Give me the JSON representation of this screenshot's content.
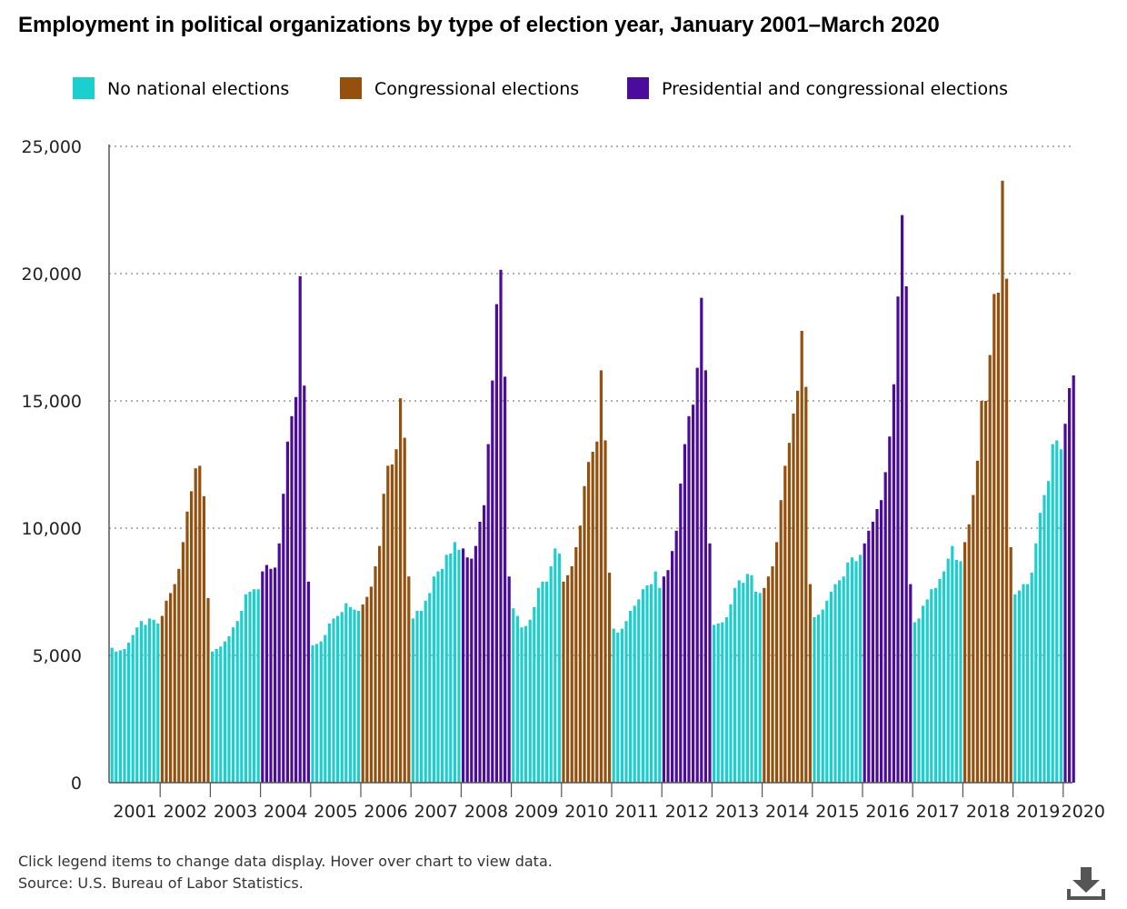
{
  "chart_data": {
    "type": "bar",
    "title": "Employment in political organizations by type of election year, January 2001–March 2020",
    "xlabel": "",
    "ylabel": "",
    "ylim": [
      0,
      25000
    ],
    "yticks": [
      "0",
      "5,000",
      "10,000",
      "15,000",
      "20,000",
      "25,000"
    ],
    "ytick_values": [
      0,
      5000,
      10000,
      15000,
      20000,
      25000
    ],
    "grid": true,
    "legend_position": "top",
    "legend": [
      {
        "key": "none",
        "label": "No national elections",
        "color": "#1ccfcf"
      },
      {
        "key": "congressional",
        "label": "Congressional elections",
        "color": "#96500e"
      },
      {
        "key": "presidential",
        "label": "Presidential and congressional elections",
        "color": "#4b0c9c"
      }
    ],
    "years": [
      {
        "label": "2001",
        "type": "none",
        "values": [
          5300,
          5150,
          5200,
          5250,
          5500,
          5800,
          6100,
          6350,
          6200,
          6450,
          6400,
          6250
        ]
      },
      {
        "label": "2002",
        "type": "congressional",
        "values": [
          6550,
          7150,
          7450,
          7800,
          8400,
          9450,
          10650,
          11450,
          12350,
          12450,
          11250,
          7250
        ]
      },
      {
        "label": "2003",
        "type": "none",
        "values": [
          5150,
          5250,
          5350,
          5550,
          5750,
          6100,
          6350,
          6750,
          7400,
          7500,
          7600,
          7600
        ]
      },
      {
        "label": "2004",
        "type": "presidential",
        "values": [
          8300,
          8550,
          8400,
          8450,
          9400,
          11350,
          13400,
          14400,
          15150,
          19900,
          15600,
          7900
        ]
      },
      {
        "label": "2005",
        "type": "none",
        "values": [
          5400,
          5450,
          5550,
          5800,
          6250,
          6450,
          6550,
          6700,
          7050,
          6900,
          6800,
          6750
        ]
      },
      {
        "label": "2006",
        "type": "congressional",
        "values": [
          7000,
          7300,
          7700,
          8500,
          9300,
          11350,
          12450,
          12500,
          13100,
          15100,
          13550,
          8100
        ]
      },
      {
        "label": "2007",
        "type": "none",
        "values": [
          6450,
          6750,
          6750,
          7150,
          7450,
          8100,
          8300,
          8400,
          8950,
          9000,
          9450,
          9150
        ]
      },
      {
        "label": "2008",
        "type": "presidential",
        "values": [
          9200,
          8850,
          8800,
          9300,
          10250,
          10900,
          13300,
          15800,
          18800,
          20150,
          15950,
          8100
        ]
      },
      {
        "label": "2009",
        "type": "none",
        "values": [
          6850,
          6550,
          6100,
          6150,
          6400,
          6900,
          7650,
          7900,
          7900,
          8500,
          9200,
          9000
        ]
      },
      {
        "label": "2010",
        "type": "congressional",
        "values": [
          7900,
          8150,
          8500,
          9250,
          10100,
          11650,
          12600,
          13000,
          13400,
          16200,
          13450,
          8250
        ]
      },
      {
        "label": "2011",
        "type": "none",
        "values": [
          6050,
          5900,
          6050,
          6350,
          6750,
          6950,
          7200,
          7600,
          7750,
          7800,
          8300,
          7650
        ]
      },
      {
        "label": "2012",
        "type": "presidential",
        "values": [
          8100,
          8350,
          9100,
          9900,
          11750,
          13300,
          14400,
          14850,
          16300,
          19050,
          16200,
          9400
        ]
      },
      {
        "label": "2013",
        "type": "none",
        "values": [
          6200,
          6250,
          6300,
          6500,
          7000,
          7650,
          7950,
          7850,
          8200,
          8150,
          7500,
          7450
        ]
      },
      {
        "label": "2014",
        "type": "congressional",
        "values": [
          7650,
          8100,
          8500,
          9450,
          11100,
          12450,
          13350,
          14500,
          15400,
          17750,
          15550,
          7800
        ]
      },
      {
        "label": "2015",
        "type": "none",
        "values": [
          6500,
          6600,
          6800,
          7150,
          7500,
          7800,
          7950,
          8100,
          8650,
          8850,
          8700,
          8950
        ]
      },
      {
        "label": "2016",
        "type": "presidential",
        "values": [
          9400,
          9900,
          10250,
          10750,
          11100,
          12200,
          13600,
          15650,
          19100,
          22300,
          19500,
          7800
        ]
      },
      {
        "label": "2017",
        "type": "none",
        "values": [
          6300,
          6450,
          6950,
          7200,
          7600,
          7650,
          8000,
          8300,
          8800,
          9300,
          8750,
          8700
        ]
      },
      {
        "label": "2018",
        "type": "congressional",
        "values": [
          9450,
          10150,
          11300,
          12650,
          15000,
          15000,
          16800,
          19200,
          19250,
          23650,
          19800,
          9250
        ]
      },
      {
        "label": "2019",
        "type": "none",
        "values": [
          7400,
          7550,
          7800,
          7800,
          8250,
          9400,
          10600,
          11300,
          11850,
          13300,
          13450,
          13100
        ]
      },
      {
        "label": "2020",
        "type": "presidential",
        "values": [
          14100,
          15500,
          16000
        ]
      }
    ]
  },
  "notes": {
    "line1": "Click legend items to change data display. Hover over chart to view data.",
    "line2": "Source: U.S. Bureau of Labor Statistics."
  },
  "icons": {
    "download": "download-icon"
  }
}
